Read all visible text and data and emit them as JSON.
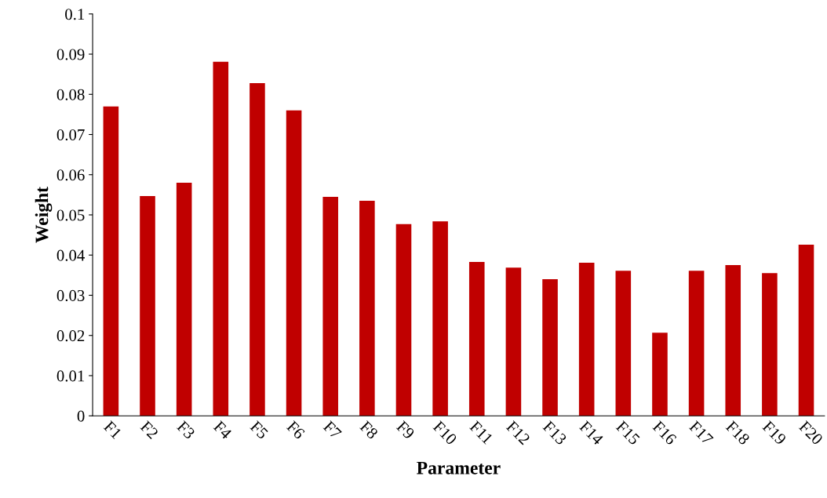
{
  "chart_data": {
    "type": "bar",
    "xlabel": "Parameter",
    "ylabel": "Weight",
    "categories": [
      "F1",
      "F2",
      "F3",
      "F4",
      "F5",
      "F6",
      "F7",
      "F8",
      "F9",
      "F10",
      "F11",
      "F12",
      "F13",
      "F14",
      "F15",
      "F16",
      "F17",
      "F18",
      "F19",
      "F20"
    ],
    "values": [
      0.077,
      0.0547,
      0.058,
      0.0881,
      0.0828,
      0.076,
      0.0545,
      0.0535,
      0.0477,
      0.0484,
      0.0383,
      0.0369,
      0.034,
      0.0381,
      0.0361,
      0.0207,
      0.0361,
      0.0375,
      0.0355,
      0.0426
    ],
    "color": "#c00000",
    "ylim": [
      0,
      0.1
    ],
    "yticks": [
      0,
      0.01,
      0.02,
      0.03,
      0.04,
      0.05,
      0.06,
      0.07,
      0.08,
      0.09,
      0.1
    ],
    "grid": false,
    "legend": false
  }
}
